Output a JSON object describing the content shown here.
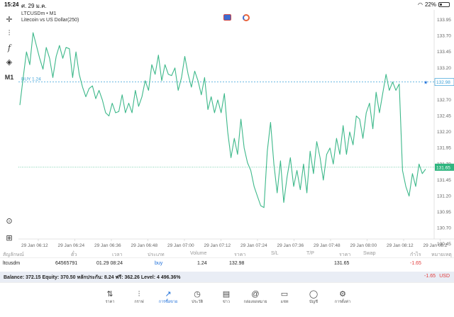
{
  "status": {
    "time": "15:24",
    "date": "ศ. 29 ม.ค.",
    "battery": "22%",
    "battery_level": 0.22
  },
  "toolbar": {
    "timeframe": "M1"
  },
  "chart_header": {
    "symbol": "LTCUSDm • M1",
    "description": "Litecoin vs US Dollar(250)"
  },
  "chart_data": {
    "type": "line",
    "color": "#3db88a",
    "ylim": [
      130.53,
      133.95
    ],
    "price_ticks": [
      "133.95",
      "133.70",
      "133.45",
      "133.20",
      "132.95",
      "132.70",
      "132.45",
      "132.20",
      "131.95",
      "131.70",
      "131.45",
      "131.20",
      "130.95",
      "130.70",
      "130.45"
    ],
    "time_labels": [
      "29 Jan 06:12",
      "29 Jan 06:24",
      "29 Jan 06:36",
      "29 Jan 06:48",
      "29 Jan 07:00",
      "29 Jan 07:12",
      "29 Jan 07:24",
      "29 Jan 07:36",
      "29 Jan 07:48",
      "29 Jan 08:00",
      "29 Jan 08:12",
      "29 Jan 08:2"
    ],
    "values": [
      132.62,
      133.05,
      133.45,
      133.25,
      133.75,
      133.55,
      133.35,
      133.18,
      133.52,
      133.35,
      133.05,
      133.38,
      133.55,
      133.35,
      133.52,
      133.5,
      133.05,
      133.45,
      133.1,
      132.9,
      132.75,
      132.88,
      132.92,
      132.72,
      132.85,
      132.7,
      132.5,
      132.45,
      132.65,
      132.5,
      132.52,
      132.78,
      132.5,
      132.65,
      132.5,
      132.85,
      132.6,
      132.75,
      133.0,
      132.85,
      133.25,
      133.1,
      133.4,
      133.0,
      133.25,
      133.1,
      133.08,
      133.2,
      132.85,
      133.05,
      133.38,
      133.1,
      132.9,
      133.15,
      133.0,
      132.78,
      133.05,
      132.55,
      132.75,
      132.5,
      132.7,
      132.5,
      132.8,
      132.2,
      131.8,
      132.1,
      131.85,
      132.4,
      131.95,
      131.72,
      131.6,
      131.35,
      131.2,
      131.05,
      131.02,
      131.9,
      132.35,
      131.7,
      131.25,
      131.75,
      131.1,
      131.5,
      131.8,
      131.35,
      131.6,
      131.3,
      131.7,
      131.25,
      131.9,
      131.55,
      132.05,
      131.8,
      131.45,
      131.85,
      131.95,
      131.7,
      132.1,
      131.85,
      132.3,
      131.85,
      132.2,
      132.0,
      132.45,
      132.4,
      132.1,
      132.5,
      132.65,
      132.25,
      132.82,
      132.5,
      132.8,
      133.1,
      132.85,
      132.98,
      132.85,
      132.95,
      131.6,
      131.35,
      131.2,
      131.55,
      131.35,
      131.7,
      131.55,
      131.62
    ],
    "buy_line": {
      "label": "BUY 1.24",
      "price": 132.98,
      "price_text": "132.98",
      "color": "#3aa0d8"
    },
    "current_price": {
      "price": 131.65,
      "price_text": "131.65",
      "color": "#2fb57f"
    }
  },
  "positions": {
    "columns": {
      "symbol": "สัญลักษณ์",
      "ticket": "ตั๋ว",
      "time": "เวลา",
      "type": "ประเภท",
      "volume": "Volume",
      "price": "ราคา",
      "sl": "S/L",
      "tp": "T/P",
      "current_price": "ราคา",
      "swap": "Swap",
      "profit": "กำไร",
      "comment": "หมายเหตุ"
    },
    "rows": [
      {
        "symbol": "ltcusdm",
        "ticket": "64565791",
        "time": "01.29 08:24",
        "type": "buy",
        "volume": "1.24",
        "price": "132.98",
        "current_price": "131.65",
        "profit": "-1.65"
      }
    ]
  },
  "balance": {
    "text": "Balance: 372.15 Equity: 370.50 หลักประกัน: 8.24 ฟรี: 362.26 Level: 4 496.36%",
    "profit": "-1.65",
    "currency": "USD"
  },
  "nav": [
    {
      "key": "quotes",
      "label": "ราคา",
      "icon": "quotes-icon",
      "glyph": "⇅"
    },
    {
      "key": "chart",
      "label": "กราฟ",
      "icon": "chart-candles-icon",
      "glyph": "⫶"
    },
    {
      "key": "trade",
      "label": "การซื้อขาย",
      "icon": "trade-icon",
      "glyph": "↗",
      "active": true
    },
    {
      "key": "history",
      "label": "ประวัติ",
      "icon": "history-icon",
      "glyph": "◷"
    },
    {
      "key": "news",
      "label": "ข่าว",
      "icon": "news-icon",
      "glyph": "▤"
    },
    {
      "key": "mailbox",
      "label": "กล่องจดหมาย",
      "icon": "mailbox-icon",
      "glyph": "@"
    },
    {
      "key": "chat",
      "label": "แชท",
      "icon": "chat-icon",
      "glyph": "▭"
    },
    {
      "key": "account",
      "label": "บัญชี",
      "icon": "account-icon",
      "glyph": "◯"
    },
    {
      "key": "settings",
      "label": "การตั้งค่า",
      "icon": "settings-icon",
      "glyph": "⚙"
    }
  ]
}
